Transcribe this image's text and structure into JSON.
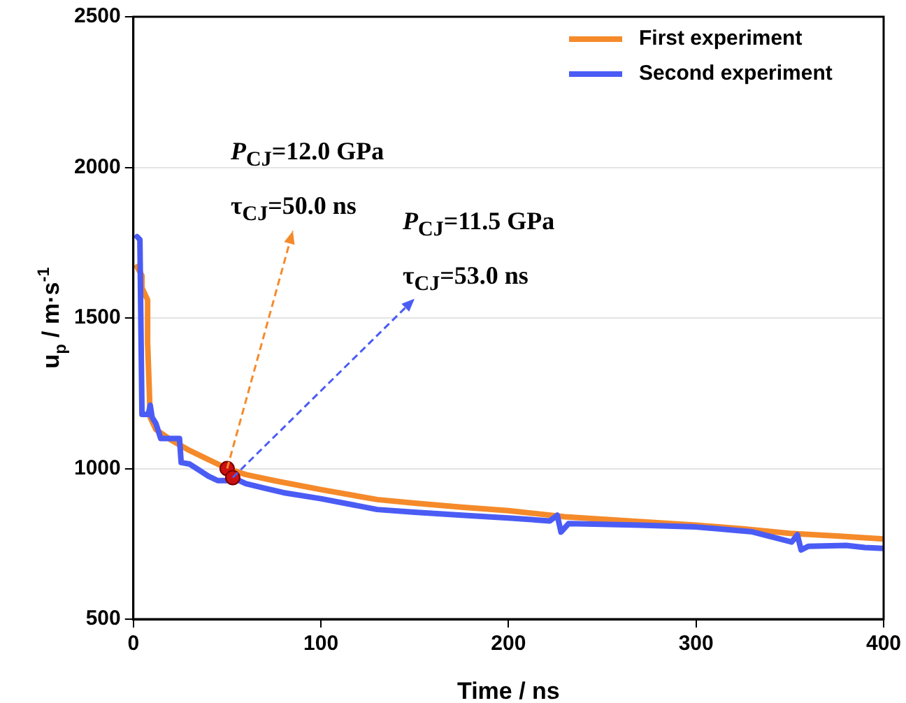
{
  "chart_data": {
    "type": "line",
    "xlabel": "Time / ns",
    "ylabel": "u$_{p}$ / m·s$^{-1}$",
    "xlim": [
      0,
      400
    ],
    "xticks": [
      0,
      100,
      200,
      300,
      400
    ],
    "ylim": [
      500,
      2500
    ],
    "yticks": [
      500,
      1000,
      1500,
      2000,
      2500
    ],
    "grid": "y",
    "legend": "top right",
    "marker": "none",
    "line_style": "solid",
    "series": [
      {
        "name": "First experiment",
        "color": "#f58a2a",
        "x": [
          2,
          4.6,
          4.6,
          7.6,
          7.6,
          9,
          12,
          20,
          30,
          40,
          50,
          60,
          75,
          100,
          130,
          150,
          175,
          200,
          230,
          250,
          275,
          300,
          325,
          350,
          375,
          400
        ],
        "values": [
          1670,
          1640,
          1600,
          1560,
          1420,
          1170,
          1130,
          1095,
          1060,
          1030,
          1000,
          980,
          960,
          930,
          897,
          885,
          872,
          860,
          840,
          832,
          822,
          812,
          800,
          785,
          776,
          766
        ]
      },
      {
        "name": "Second experiment",
        "color": "#4b5cf5",
        "x": [
          2,
          3.5,
          4.6,
          8,
          9,
          10,
          12,
          14.6,
          20,
          24.6,
          25.5,
          30,
          35,
          40,
          45,
          50,
          53,
          60,
          70,
          80,
          100,
          130,
          150,
          175,
          200,
          222,
          226,
          228,
          232,
          250,
          270,
          300,
          330,
          351,
          354,
          356,
          360,
          380,
          390,
          400
        ],
        "values": [
          1770,
          1760,
          1180,
          1180,
          1210,
          1170,
          1150,
          1100,
          1100,
          1100,
          1020,
          1015,
          995,
          975,
          960,
          960,
          970,
          950,
          935,
          920,
          900,
          864,
          855,
          845,
          836,
          826,
          845,
          789,
          817,
          815,
          812,
          806,
          790,
          756,
          780,
          730,
          742,
          745,
          738,
          735
        ]
      },
      {
        "type": "scatter",
        "color": "#cc1010",
        "marker": "circle",
        "x": [
          50,
          53
        ],
        "values": [
          1000,
          970
        ]
      }
    ],
    "annotations": [
      "P$_{CJ}$=12.0 GPa\nτ$_{CJ}$=50.0 ns",
      "P$_{CJ}$=11.5 GPa\nτ$_{CJ}$=53.0 ns"
    ]
  }
}
